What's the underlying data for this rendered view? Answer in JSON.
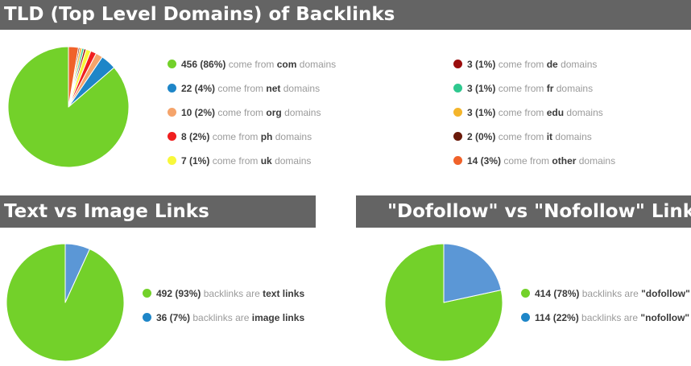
{
  "sections": {
    "tld": {
      "title": "TLD (Top Level Domains) of Backlinks",
      "connector": "come from",
      "suffix": "domains",
      "items": [
        {
          "value": "456 (86%)",
          "name": "com",
          "color": "#73d12a"
        },
        {
          "value": "22 (4%)",
          "name": "net",
          "color": "#1e86c8"
        },
        {
          "value": "10 (2%)",
          "name": "org",
          "color": "#f5a46b"
        },
        {
          "value": "8 (2%)",
          "name": "ph",
          "color": "#f01f1f"
        },
        {
          "value": "7 (1%)",
          "name": "uk",
          "color": "#f8f83a"
        },
        {
          "value": "3 (1%)",
          "name": "de",
          "color": "#9b0d0d"
        },
        {
          "value": "3 (1%)",
          "name": "fr",
          "color": "#2fc88f"
        },
        {
          "value": "3 (1%)",
          "name": "edu",
          "color": "#f4b52b"
        },
        {
          "value": "2 (0%)",
          "name": "it",
          "color": "#6a1a0a"
        },
        {
          "value": "14 (3%)",
          "name": "other",
          "color": "#f0622a"
        }
      ]
    },
    "text_image": {
      "title": "Text vs Image Links",
      "connector": "backlinks are",
      "items": [
        {
          "value": "492 (93%)",
          "name": "text links",
          "color": "#73d12a"
        },
        {
          "value": "36 (7%)",
          "name": "image links",
          "color": "#1e86c8"
        }
      ]
    },
    "follow": {
      "title": "\"Dofollow\" vs \"Nofollow\" Links",
      "connector": "backlinks are",
      "items": [
        {
          "value": "414 (78%)",
          "name": "\"dofollow\"",
          "color": "#73d12a"
        },
        {
          "value": "114 (22%)",
          "name": "\"nofollow\"",
          "color": "#1e86c8"
        }
      ]
    }
  },
  "chart_data": [
    {
      "type": "pie",
      "title": "TLD (Top Level Domains) of Backlinks",
      "labels": [
        "com",
        "net",
        "org",
        "ph",
        "uk",
        "de",
        "fr",
        "edu",
        "it",
        "other"
      ],
      "values": [
        456,
        22,
        10,
        8,
        7,
        3,
        3,
        3,
        2,
        14
      ],
      "colors": [
        "#73d12a",
        "#1e86c8",
        "#f5a46b",
        "#f01f1f",
        "#f8f83a",
        "#9b0d0d",
        "#2fc88f",
        "#f4b52b",
        "#6a1a0a",
        "#f0622a"
      ],
      "legend": "right"
    },
    {
      "type": "pie",
      "title": "Text vs Image Links",
      "labels": [
        "text links",
        "image links"
      ],
      "values": [
        492,
        36
      ],
      "colors": [
        "#73d12a",
        "#5b97d6"
      ],
      "legend": "right"
    },
    {
      "type": "pie",
      "title": "\"Dofollow\" vs \"Nofollow\" Links",
      "labels": [
        "\"dofollow\"",
        "\"nofollow\""
      ],
      "values": [
        414,
        114
      ],
      "colors": [
        "#73d12a",
        "#5b97d6"
      ],
      "legend": "right"
    }
  ]
}
